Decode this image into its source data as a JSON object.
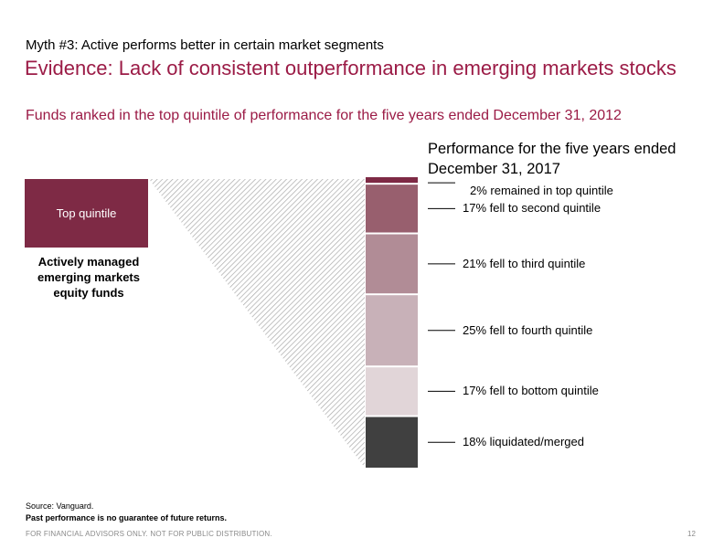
{
  "header": {
    "eyebrow": "Myth #3: Active performs better in certain market segments",
    "title": "Evidence: Lack of consistent outperformance in emerging markets stocks",
    "subtitle": "Funds ranked in the top quintile of performance for the five years ended December 31, 2012"
  },
  "chart_data": {
    "type": "bar",
    "title": "Performance for the five years ended December 31, 2017",
    "source_box": {
      "label": "Top quintile",
      "description": "Actively managed emerging markets equity funds"
    },
    "segments": [
      {
        "category": "remained in top quintile",
        "value": 2,
        "label": "2% remained in top quintile",
        "color": "#7e2a45"
      },
      {
        "category": "fell to second quintile",
        "value": 17,
        "label": "17% fell to second quintile",
        "color": "#985f6e"
      },
      {
        "category": "fell to third quintile",
        "value": 21,
        "label": "21% fell to third quintile",
        "color": "#b18c96"
      },
      {
        "category": "fell to fourth quintile",
        "value": 25,
        "label": "25% fell to fourth quintile",
        "color": "#c8b1b8"
      },
      {
        "category": "fell to bottom quintile",
        "value": 17,
        "label": "17% fell to bottom quintile",
        "color": "#e1d5d8"
      },
      {
        "category": "liquidated/merged",
        "value": 18,
        "label": "18% liquidated/merged",
        "color": "#404040"
      }
    ]
  },
  "footer": {
    "source": "Source: Vanguard.",
    "disclaimer": "Past performance is no guarantee of future returns.",
    "distribution": "FOR FINANCIAL ADVISORS ONLY. NOT FOR PUBLIC DISTRIBUTION.",
    "page_number": "12"
  }
}
